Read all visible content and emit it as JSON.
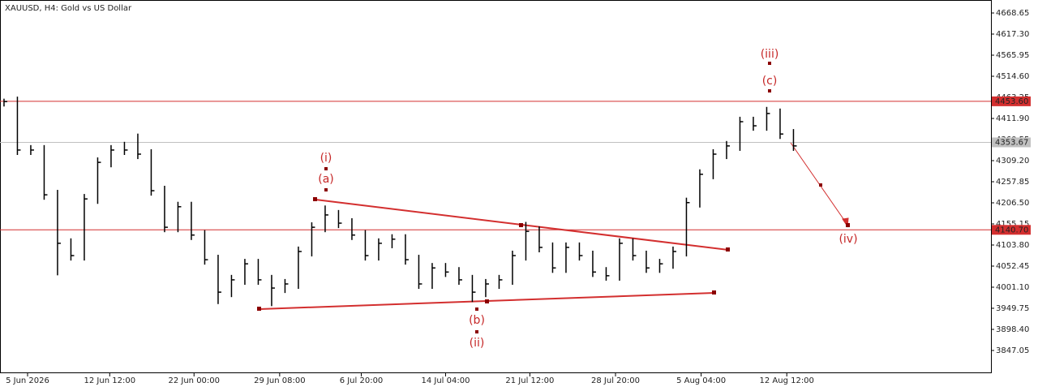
{
  "chart_data": {
    "type": "hlc",
    "title": "XAUUSD, H4:  Gold vs US Dollar",
    "high": [
      4460,
      4465,
      4347,
      4347,
      4238,
      4120,
      4228,
      4317,
      4347,
      4355,
      4375,
      4337,
      4248,
      4209,
      4209,
      4140,
      4080,
      4031,
      4070,
      4070,
      4031,
      4021,
      4100,
      4159,
      4200,
      4189,
      4169,
      4140,
      4120,
      4130,
      4130,
      4080,
      4060,
      4060,
      4050,
      4031,
      4021,
      4031,
      4090,
      4160,
      4149,
      4110,
      4110,
      4110,
      4090,
      4050,
      4120,
      4120,
      4090,
      4070,
      4100,
      4219,
      4288,
      4337,
      4357,
      4416,
      4416,
      4440,
      4436,
      4386
    ],
    "low": [
      4441,
      4323,
      4323,
      4214,
      4030,
      4066,
      4066,
      4204,
      4293,
      4323,
      4313,
      4224,
      4135,
      4135,
      4116,
      4056,
      3960,
      3977,
      4007,
      4007,
      3955,
      3987,
      3997,
      4076,
      4135,
      4145,
      4116,
      4066,
      4066,
      4096,
      4056,
      3997,
      3997,
      4026,
      4007,
      3965,
      3977,
      3997,
      4007,
      4066,
      4086,
      4036,
      4036,
      4066,
      4026,
      4017,
      4017,
      4066,
      4036,
      4036,
      4046,
      4076,
      4195,
      4264,
      4313,
      4333,
      4382,
      4382,
      4362,
      4333
    ],
    "close": [
      4453,
      4335,
      4335,
      4226,
      4108,
      4078,
      4216,
      4305,
      4335,
      4335,
      4325,
      4236,
      4147,
      4197,
      4128,
      4068,
      3989,
      4019,
      4058,
      4019,
      3999,
      4009,
      4088,
      4147,
      4177,
      4157,
      4128,
      4078,
      4108,
      4118,
      4068,
      4009,
      4048,
      4038,
      4019,
      3989,
      4009,
      4019,
      4078,
      4137,
      4098,
      4048,
      4098,
      4078,
      4038,
      4029,
      4108,
      4078,
      4048,
      4058,
      4088,
      4207,
      4276,
      4325,
      4345,
      4404,
      4394,
      4424,
      4374,
      4345
    ],
    "color": "#000000",
    "xlim": [
      -0.3,
      73.76
    ],
    "xticks": [
      {
        "value": 1.76,
        "label": "5 Jun 2026"
      },
      {
        "value": 7.9,
        "label": "12 Jun 12:00"
      },
      {
        "value": 14.2,
        "label": "22 Jun 00:00"
      },
      {
        "value": 20.6,
        "label": "29 Jun 08:00"
      },
      {
        "value": 26.7,
        "label": "6 Jul 20:00"
      },
      {
        "value": 33.0,
        "label": "14 Jul 04:00"
      },
      {
        "value": 39.3,
        "label": "21 Jul 12:00"
      },
      {
        "value": 45.7,
        "label": "28 Jul 20:00"
      },
      {
        "value": 52.1,
        "label": "5 Aug 04:00"
      },
      {
        "value": 58.5,
        "label": "12 Aug 12:00"
      }
    ],
    "ylim": [
      3791.7,
      4700.25
    ],
    "yticks": [
      {
        "value": 4668.65,
        "label": "4668.65"
      },
      {
        "value": 4617.3,
        "label": "4617.30"
      },
      {
        "value": 4565.95,
        "label": "4565.95"
      },
      {
        "value": 4514.6,
        "label": "4514.60"
      },
      {
        "value": 4463.25,
        "label": "4463.25"
      },
      {
        "value": 4411.9,
        "label": "4411.90"
      },
      {
        "value": 4360.55,
        "label": "4360.55"
      },
      {
        "value": 4309.2,
        "label": "4309.20"
      },
      {
        "value": 4257.85,
        "label": "4257.85"
      },
      {
        "value": 4206.5,
        "label": "4206.50"
      },
      {
        "value": 4155.15,
        "label": "4155.15"
      },
      {
        "value": 4103.8,
        "label": "4103.80"
      },
      {
        "value": 4052.45,
        "label": "4052.45"
      },
      {
        "value": 4001.1,
        "label": "4001.10"
      },
      {
        "value": 3949.75,
        "label": "3949.75"
      },
      {
        "value": 3898.4,
        "label": "3898.40"
      },
      {
        "value": 3847.05,
        "label": "3847.05"
      }
    ],
    "levels": [
      {
        "value": 4453.6,
        "label": "4453.60",
        "color": "#d32f2f"
      },
      {
        "value": 4140.7,
        "label": "4140.70",
        "color": "#d32f2f"
      },
      {
        "value": 4353.67,
        "label": "4353.67",
        "color": "#c0c0c0"
      }
    ],
    "annotations": [
      "(i)",
      "(a)",
      "(b)",
      "(ii)",
      "(iii)",
      "(c)",
      "(iv)"
    ]
  }
}
